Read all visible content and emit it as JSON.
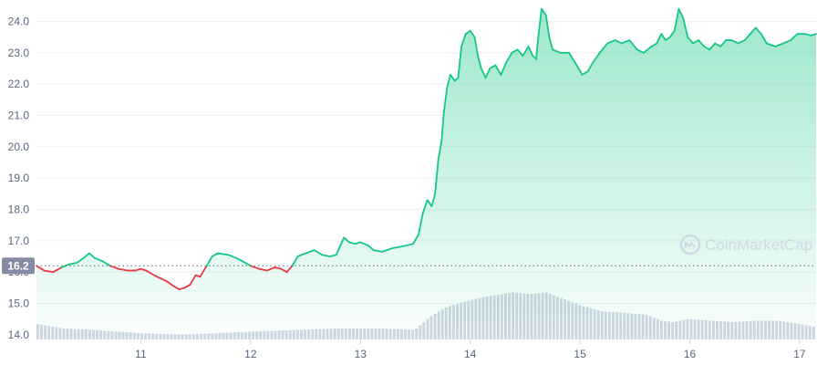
{
  "chart_data": {
    "type": "area",
    "title": "",
    "xlabel": "",
    "ylabel": "",
    "x_ticks": [
      "11",
      "12",
      "13",
      "14",
      "15",
      "16",
      "17"
    ],
    "x_range": [
      10.05,
      17.15
    ],
    "y_ticks": [
      "14.0",
      "15.0",
      "16.0",
      "17.0",
      "18.0",
      "19.0",
      "20.0",
      "21.0",
      "22.0",
      "23.0",
      "24.0"
    ],
    "ylim": [
      13.85,
      24.45
    ],
    "reference_value": 16.2,
    "reference_label": "16.2",
    "grid": true,
    "colors": {
      "up": "#16c784",
      "down": "#ea3943",
      "volume": "#cfd6e4",
      "reference_badge": "#858ca2"
    },
    "series": [
      {
        "points": [
          [
            10.05,
            16.2
          ],
          [
            10.12,
            16.05
          ],
          [
            10.2,
            16.0
          ],
          [
            10.28,
            16.15
          ],
          [
            10.35,
            16.25
          ],
          [
            10.42,
            16.3
          ],
          [
            10.48,
            16.45
          ],
          [
            10.53,
            16.6
          ],
          [
            10.58,
            16.45
          ],
          [
            10.65,
            16.35
          ],
          [
            10.72,
            16.2
          ],
          [
            10.8,
            16.1
          ],
          [
            10.88,
            16.05
          ],
          [
            10.95,
            16.05
          ],
          [
            11.0,
            16.1
          ],
          [
            11.05,
            16.05
          ],
          [
            11.12,
            15.9
          ],
          [
            11.18,
            15.8
          ],
          [
            11.24,
            15.7
          ],
          [
            11.3,
            15.55
          ],
          [
            11.35,
            15.45
          ],
          [
            11.4,
            15.5
          ],
          [
            11.45,
            15.6
          ],
          [
            11.5,
            15.9
          ],
          [
            11.54,
            15.85
          ],
          [
            11.6,
            16.2
          ],
          [
            11.65,
            16.5
          ],
          [
            11.7,
            16.6
          ],
          [
            11.8,
            16.55
          ],
          [
            11.9,
            16.4
          ],
          [
            12.0,
            16.2
          ],
          [
            12.08,
            16.1
          ],
          [
            12.15,
            16.05
          ],
          [
            12.22,
            16.15
          ],
          [
            12.28,
            16.1
          ],
          [
            12.33,
            16.0
          ],
          [
            12.38,
            16.2
          ],
          [
            12.43,
            16.5
          ],
          [
            12.5,
            16.6
          ],
          [
            12.58,
            16.7
          ],
          [
            12.65,
            16.55
          ],
          [
            12.72,
            16.5
          ],
          [
            12.78,
            16.55
          ],
          [
            12.85,
            17.1
          ],
          [
            12.9,
            16.95
          ],
          [
            12.95,
            16.9
          ],
          [
            13.0,
            16.95
          ],
          [
            13.07,
            16.85
          ],
          [
            13.12,
            16.7
          ],
          [
            13.2,
            16.65
          ],
          [
            13.28,
            16.75
          ],
          [
            13.35,
            16.8
          ],
          [
            13.42,
            16.85
          ],
          [
            13.48,
            16.9
          ],
          [
            13.53,
            17.2
          ],
          [
            13.57,
            17.9
          ],
          [
            13.61,
            18.3
          ],
          [
            13.65,
            18.1
          ],
          [
            13.68,
            18.5
          ],
          [
            13.71,
            19.6
          ],
          [
            13.74,
            20.2
          ],
          [
            13.76,
            21.1
          ],
          [
            13.79,
            21.9
          ],
          [
            13.82,
            22.3
          ],
          [
            13.86,
            22.1
          ],
          [
            13.89,
            22.2
          ],
          [
            13.92,
            23.2
          ],
          [
            13.96,
            23.6
          ],
          [
            14.0,
            23.7
          ],
          [
            14.04,
            23.5
          ],
          [
            14.07,
            22.9
          ],
          [
            14.1,
            22.5
          ],
          [
            14.14,
            22.2
          ],
          [
            14.18,
            22.5
          ],
          [
            14.23,
            22.6
          ],
          [
            14.28,
            22.3
          ],
          [
            14.33,
            22.7
          ],
          [
            14.38,
            23.0
          ],
          [
            14.43,
            23.1
          ],
          [
            14.48,
            22.9
          ],
          [
            14.53,
            23.2
          ],
          [
            14.57,
            22.9
          ],
          [
            14.6,
            22.8
          ],
          [
            14.62,
            23.5
          ],
          [
            14.65,
            24.4
          ],
          [
            14.69,
            24.2
          ],
          [
            14.72,
            23.5
          ],
          [
            14.75,
            23.1
          ],
          [
            14.82,
            23.0
          ],
          [
            14.9,
            23.0
          ],
          [
            14.97,
            22.6
          ],
          [
            15.02,
            22.3
          ],
          [
            15.07,
            22.4
          ],
          [
            15.12,
            22.7
          ],
          [
            15.18,
            23.0
          ],
          [
            15.25,
            23.3
          ],
          [
            15.32,
            23.4
          ],
          [
            15.38,
            23.3
          ],
          [
            15.45,
            23.4
          ],
          [
            15.52,
            23.1
          ],
          [
            15.58,
            23.0
          ],
          [
            15.65,
            23.2
          ],
          [
            15.7,
            23.3
          ],
          [
            15.74,
            23.6
          ],
          [
            15.78,
            23.4
          ],
          [
            15.82,
            23.5
          ],
          [
            15.86,
            23.7
          ],
          [
            15.9,
            24.4
          ],
          [
            15.94,
            24.1
          ],
          [
            15.98,
            23.5
          ],
          [
            16.03,
            23.3
          ],
          [
            16.08,
            23.4
          ],
          [
            16.13,
            23.2
          ],
          [
            16.18,
            23.1
          ],
          [
            16.23,
            23.3
          ],
          [
            16.28,
            23.2
          ],
          [
            16.33,
            23.4
          ],
          [
            16.38,
            23.4
          ],
          [
            16.44,
            23.3
          ],
          [
            16.5,
            23.4
          ],
          [
            16.55,
            23.6
          ],
          [
            16.6,
            23.8
          ],
          [
            16.65,
            23.6
          ],
          [
            16.7,
            23.3
          ],
          [
            16.78,
            23.2
          ],
          [
            16.85,
            23.3
          ],
          [
            16.92,
            23.4
          ],
          [
            16.98,
            23.6
          ],
          [
            17.05,
            23.6
          ],
          [
            17.1,
            23.55
          ],
          [
            17.15,
            23.6
          ]
        ]
      }
    ],
    "volume": {
      "x": [
        10.05,
        10.3,
        10.6,
        11.0,
        11.4,
        11.7,
        12.0,
        12.4,
        12.8,
        13.2,
        13.5,
        13.65,
        13.8,
        14.0,
        14.2,
        14.4,
        14.55,
        14.7,
        14.85,
        15.0,
        15.2,
        15.4,
        15.6,
        15.75,
        15.85,
        16.0,
        16.2,
        16.4,
        16.6,
        16.8,
        17.0,
        17.15
      ],
      "values": [
        14.35,
        14.2,
        14.15,
        14.05,
        14.0,
        14.05,
        14.1,
        14.15,
        14.2,
        14.2,
        14.15,
        14.6,
        14.9,
        15.1,
        15.25,
        15.35,
        15.3,
        15.35,
        15.15,
        14.95,
        14.75,
        14.7,
        14.65,
        14.45,
        14.4,
        14.5,
        14.45,
        14.4,
        14.45,
        14.45,
        14.35,
        14.25
      ]
    }
  },
  "watermark": {
    "text": "CoinMarketCap",
    "icon": "coinmarketcap-logo-icon"
  }
}
